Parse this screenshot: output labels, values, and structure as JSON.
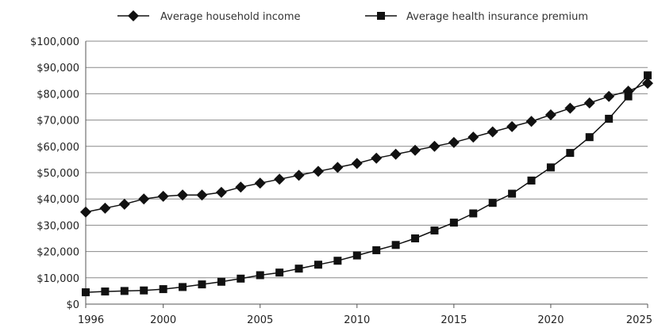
{
  "chart_data": {
    "type": "line",
    "title": "",
    "xlabel": "",
    "ylabel": "",
    "xlim": [
      1996,
      2025
    ],
    "ylim": [
      0,
      100000
    ],
    "x_ticks": [
      1996,
      2000,
      2005,
      2010,
      2015,
      2020,
      2025
    ],
    "x_tick_labels": [
      "1996",
      "2000",
      "2005",
      "2010",
      "2015",
      "2020",
      "2025"
    ],
    "y_ticks": [
      0,
      10000,
      20000,
      30000,
      40000,
      50000,
      60000,
      70000,
      80000,
      90000,
      100000
    ],
    "y_tick_labels": [
      "$0",
      "$10,000",
      "$20,000",
      "$30,000",
      "$40,000",
      "$50,000",
      "$60,000",
      "$70,000",
      "$80,000",
      "$90,000",
      "$100,000"
    ],
    "grid": "horizontal",
    "legend_position": "top",
    "x": [
      1996,
      1997,
      1998,
      1999,
      2000,
      2001,
      2002,
      2003,
      2004,
      2005,
      2006,
      2007,
      2008,
      2009,
      2010,
      2011,
      2012,
      2013,
      2014,
      2015,
      2016,
      2017,
      2018,
      2019,
      2020,
      2021,
      2022,
      2023,
      2024,
      2025
    ],
    "series": [
      {
        "name": "Average household income",
        "marker": "diamond",
        "color": "#111111",
        "values": [
          35000,
          36500,
          38000,
          40000,
          41000,
          41500,
          41500,
          42500,
          44500,
          46000,
          47500,
          49000,
          50500,
          52000,
          53500,
          55500,
          57000,
          58500,
          60000,
          61500,
          63500,
          65500,
          67500,
          69500,
          72000,
          74500,
          76500,
          79000,
          81000,
          84000
        ]
      },
      {
        "name": "Average health insurance premium",
        "marker": "square",
        "color": "#111111",
        "values": [
          4500,
          4800,
          5000,
          5200,
          5700,
          6500,
          7500,
          8500,
          9700,
          11000,
          12000,
          13500,
          15000,
          16500,
          18500,
          20500,
          22500,
          25000,
          28000,
          31000,
          34500,
          38500,
          42000,
          47000,
          52000,
          57500,
          63500,
          70500,
          79000,
          87000
        ]
      }
    ]
  }
}
